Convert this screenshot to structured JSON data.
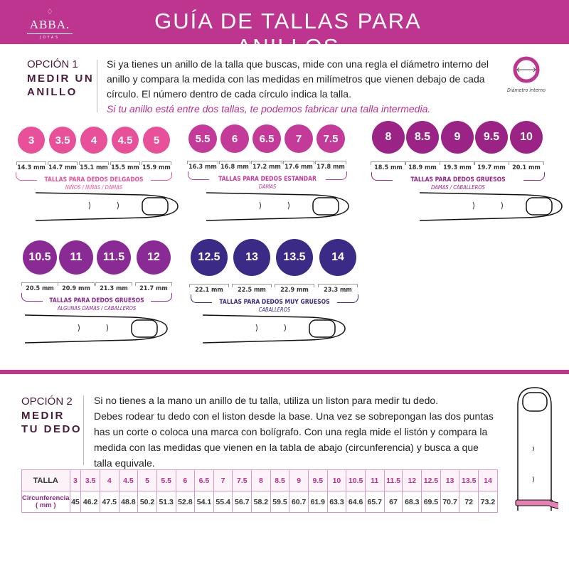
{
  "header": {
    "title": "GUÍA DE TALLAS PARA ANILLOS",
    "logo": {
      "name": "ABBA.",
      "sub": "JOYAS"
    }
  },
  "option1": {
    "number": "OPCIÓN 1",
    "name_line1": "MEDIR UN",
    "name_line2": "ANILLO",
    "text": "Si ya tienes un anillo de la talla que buscas, mide con una regla el diámetro interno del anillo y compara la medida con las medidas en milímetros que vienen debajo de cada círculo. El número dentro de cada círculo indica la talla.",
    "highlight": "Si tu anillo está entre dos tallas, te podemos fabricar una talla intermedia.",
    "diagram_caption": "Diámetro interno"
  },
  "groups": [
    {
      "color": "#e8519a",
      "title": "TALLAS PARA DEDOS DELGADOS",
      "subtitle": "NIÑOS / NIÑAS / DAMAS",
      "sizes": [
        "3",
        "3.5",
        "4",
        "4.5",
        "5"
      ],
      "mm": [
        "14.3 mm",
        "14.7 mm",
        "15.1 mm",
        "15.5 mm",
        "15.9 mm"
      ]
    },
    {
      "color": "#c43a98",
      "title": "TALLAS PARA DEDOS ESTANDAR",
      "subtitle": "DAMAS",
      "sizes": [
        "5.5",
        "6",
        "6.5",
        "7",
        "7.5"
      ],
      "mm": [
        "16.3 mm",
        "16.8 mm",
        "17.2 mm",
        "17.6 mm",
        "17.8 mm"
      ]
    },
    {
      "color": "#9b2386",
      "title": "TALLAS PARA DEDOS GRUESOS",
      "subtitle": "DAMAS / CABALLEROS",
      "sizes": [
        "8",
        "8.5",
        "9",
        "9.5",
        "10"
      ],
      "mm": [
        "18.5 mm",
        "18.9 mm",
        "19.3 mm",
        "19.7 mm",
        "20.1 mm"
      ]
    },
    {
      "color": "#8a2a94",
      "title": "TALLAS PARA DEDOS GRUESOS",
      "subtitle": "ALGUNAS DAMAS / CABALLEROS",
      "sizes": [
        "10.5",
        "11",
        "11.5",
        "12"
      ],
      "mm": [
        "20.5 mm",
        "20.9 mm",
        "21.3 mm",
        "21.7 mm"
      ]
    },
    {
      "color": "#3b2a86",
      "title": "TALLAS PARA DEDOS MUY GRUESOS",
      "subtitle": "CABALLEROS",
      "sizes": [
        "12.5",
        "13",
        "13.5",
        "14"
      ],
      "mm": [
        "22.1 mm",
        "22.5 mm",
        "22.9 mm",
        "23.3 mm"
      ]
    }
  ],
  "option2": {
    "number": "OPCIÓN 2",
    "name_line1": "MEDIR",
    "name_line2": "TU DEDO",
    "lines": [
      "Si no tienes a la mano un anillo de tu talla, utiliza un liston para medir tu dedo.",
      "Debes rodear tu dedo con el liston desde la base. Una vez se sobrepongan las dos puntas",
      "has un corte o coloca una marca con bolígrafo. Con una regla mide el listón y compara la",
      "medida con las medidas que vienen en la tabla de abajo (circunferencia) y busca a que",
      "talla equivale."
    ]
  },
  "table": {
    "row1_header": "TALLA",
    "row2_header_line1": "Circunferencia",
    "row2_header_line2": "( mm )",
    "sizes": [
      "3",
      "3.5",
      "4",
      "4.5",
      "5",
      "5.5",
      "6",
      "6.5",
      "7",
      "7.5",
      "8",
      "8.5",
      "9",
      "9.5",
      "10",
      "10.5",
      "11",
      "11.5",
      "12",
      "12.5",
      "13",
      "13.5",
      "14"
    ],
    "circumference": [
      "45",
      "46.2",
      "47.5",
      "48.8",
      "50.2",
      "51.3",
      "52.8",
      "54.1",
      "55.4",
      "56.7",
      "58.2",
      "59.5",
      "60.7",
      "61.9",
      "63.3",
      "64.6",
      "65.7",
      "67",
      "68.3",
      "69.5",
      "70.7",
      "72",
      "73.2"
    ]
  }
}
